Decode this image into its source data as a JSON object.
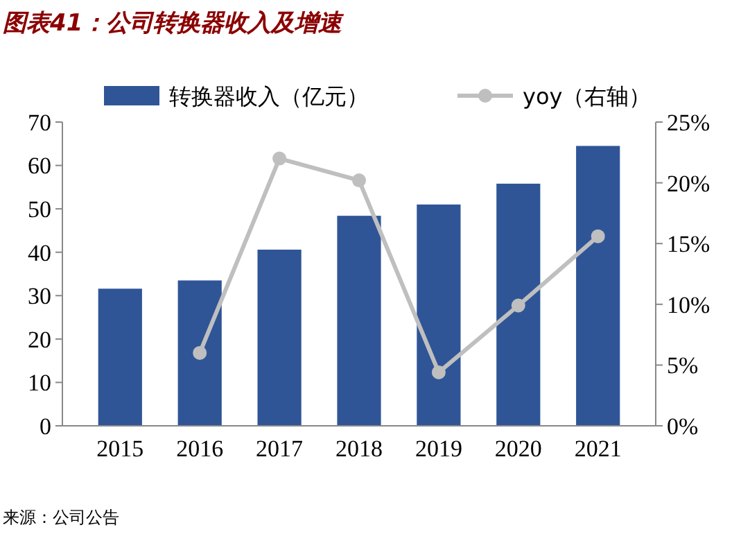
{
  "chart_data": {
    "type": "bar",
    "title": "图表41：公司转换器收入及增速",
    "categories": [
      "2015",
      "2016",
      "2017",
      "2018",
      "2019",
      "2020",
      "2021"
    ],
    "series": [
      {
        "name": "转换器收入（亿元）",
        "color": "#2f5597",
        "values": [
          31.6,
          33.5,
          40.6,
          48.4,
          51,
          55.8,
          64.5
        ]
      },
      {
        "name": "yoy（右轴）",
        "type": "line",
        "axis": "y2",
        "color": "#bfbfbf",
        "marker": "circle",
        "values": [
          null,
          6.0,
          22.0,
          20.2,
          4.4,
          9.9,
          15.6
        ]
      }
    ],
    "ylim": [
      0,
      70
    ],
    "yticks": [
      0,
      10,
      20,
      30,
      40,
      50,
      60,
      70
    ],
    "y2lim": [
      0,
      25
    ],
    "y2ticks": [
      {
        "value": 0,
        "label": "0%"
      },
      {
        "value": 5,
        "label": "5%"
      },
      {
        "value": 10,
        "label": "10%"
      },
      {
        "value": 15,
        "label": "15%"
      },
      {
        "value": 20,
        "label": "20%"
      },
      {
        "value": 25,
        "label": "25%"
      }
    ],
    "legend": "top",
    "grid": false,
    "annotations": [
      "来源：公司公告"
    ]
  }
}
